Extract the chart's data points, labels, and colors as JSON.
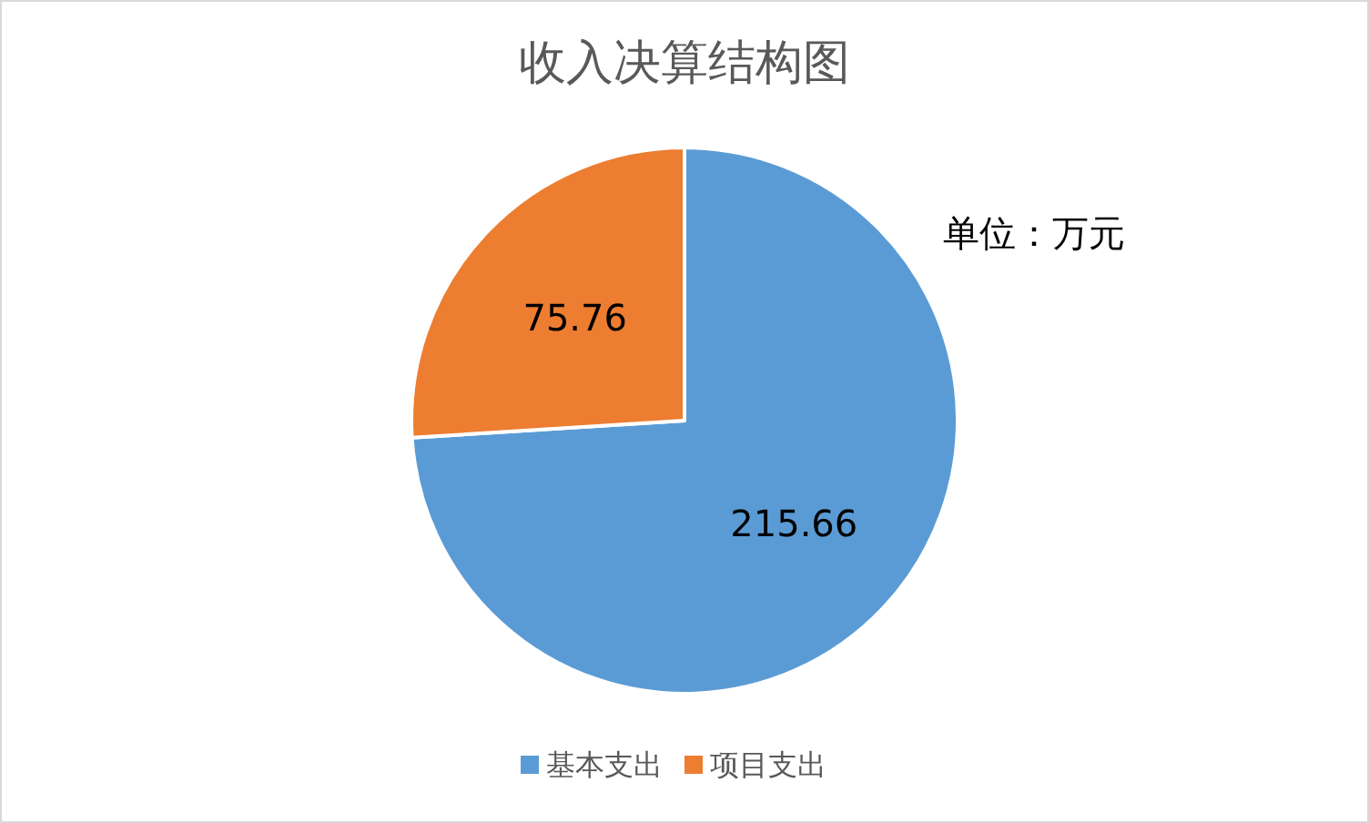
{
  "chart_data": {
    "type": "pie",
    "title": "收入决算结构图",
    "categories": [
      "基本支出",
      "项目支出"
    ],
    "values": [
      215.66,
      75.76
    ],
    "colors": [
      "#5b9bd5",
      "#ed7d31"
    ],
    "data_labels": true,
    "legend": "bottom",
    "annotations": [
      "单位：万元"
    ]
  }
}
